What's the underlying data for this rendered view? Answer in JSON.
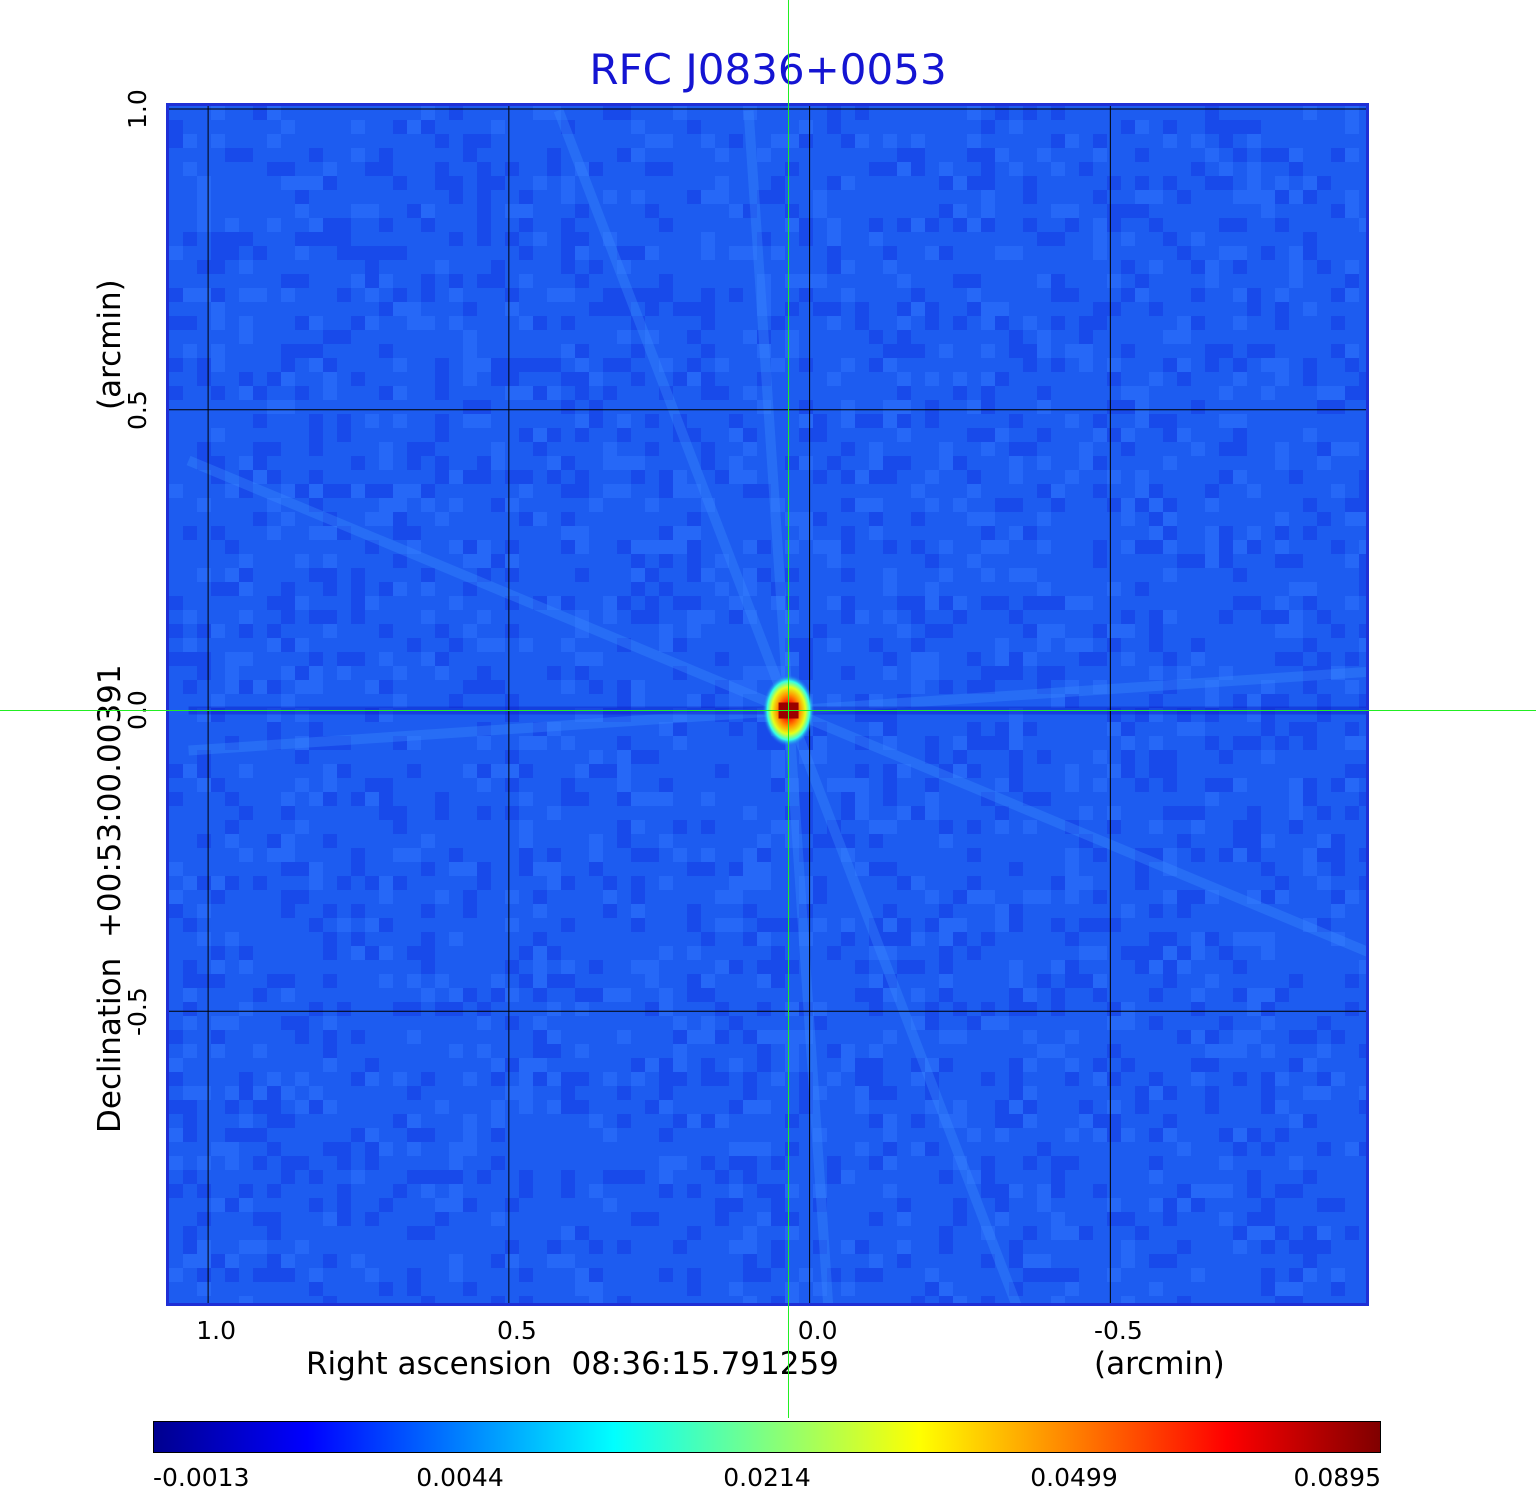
{
  "chart_data": {
    "type": "heatmap",
    "title": "RFC J0836+0053",
    "xlabel": "Right ascension  08:36:15.791259",
    "xunit": "(arcmin)",
    "ylabel": "Declination  +00:53:00.00391",
    "yunit": "(arcmin)",
    "xlim": [
      1.07,
      -0.93
    ],
    "ylim": [
      -0.99,
      1.01
    ],
    "x_ticks": [
      "1.0",
      "0.5",
      "0.0",
      "-0.5"
    ],
    "x_tick_values": [
      1.0,
      0.5,
      0.0,
      -0.5
    ],
    "y_ticks": [
      "-0.5",
      "0.0",
      "0.5",
      "1.0"
    ],
    "y_tick_values": [
      -0.5,
      0.0,
      0.5,
      1.0
    ],
    "grid": true,
    "crosshair": {
      "x": 0.035,
      "y": 0.0
    },
    "source_peak": {
      "x": 0.035,
      "y": 0.0,
      "value": 0.0895
    },
    "colormap": "jet",
    "colorbar_ticks": [
      "-0.0013",
      "0.0044",
      "0.0214",
      "0.0499",
      "0.0895"
    ],
    "colorbar_values": [
      -0.0013,
      0.0044,
      0.0214,
      0.0499,
      0.0895
    ],
    "colors": {
      "background_map": "#1d5cf0",
      "grid": "#000000",
      "crosshair": "#22ee22",
      "title": "#1414d2"
    }
  }
}
